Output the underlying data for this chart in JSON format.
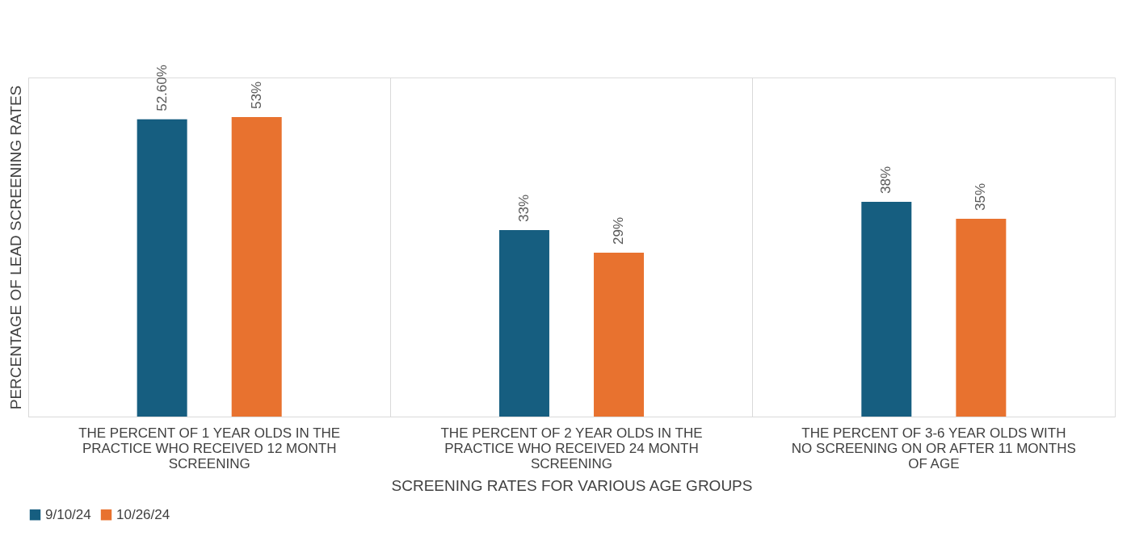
{
  "chart_data": {
    "type": "bar",
    "xlabel": "SCREENING RATES FOR VARIOUS AGE GROUPS",
    "ylabel": "PERCENTAGE OF LEAD SCREENING RATES",
    "categories": [
      "THE PERCENT OF 1 YEAR OLDS IN THE PRACTICE WHO RECEIVED 12 MONTH SCREENING",
      "THE PERCENT OF 2 YEAR OLDS IN THE PRACTICE WHO RECEIVED 24 MONTH SCREENING",
      "THE PERCENT OF 3-6 YEAR OLDS WITH NO SCREENING ON OR AFTER 11 MONTHS OF AGE"
    ],
    "series": [
      {
        "name": "9/10/24",
        "color": "#165e80",
        "values": [
          52.6,
          33,
          38
        ],
        "value_labels": [
          "52.60%",
          "33%",
          "38%"
        ]
      },
      {
        "name": "10/26/24",
        "color": "#e8722f",
        "values": [
          53,
          29,
          35
        ],
        "value_labels": [
          "53%",
          "29%",
          "35%"
        ]
      }
    ],
    "ylim": [
      0,
      60
    ],
    "tick_labels": "x",
    "grid": "x",
    "legend": "bottom"
  }
}
